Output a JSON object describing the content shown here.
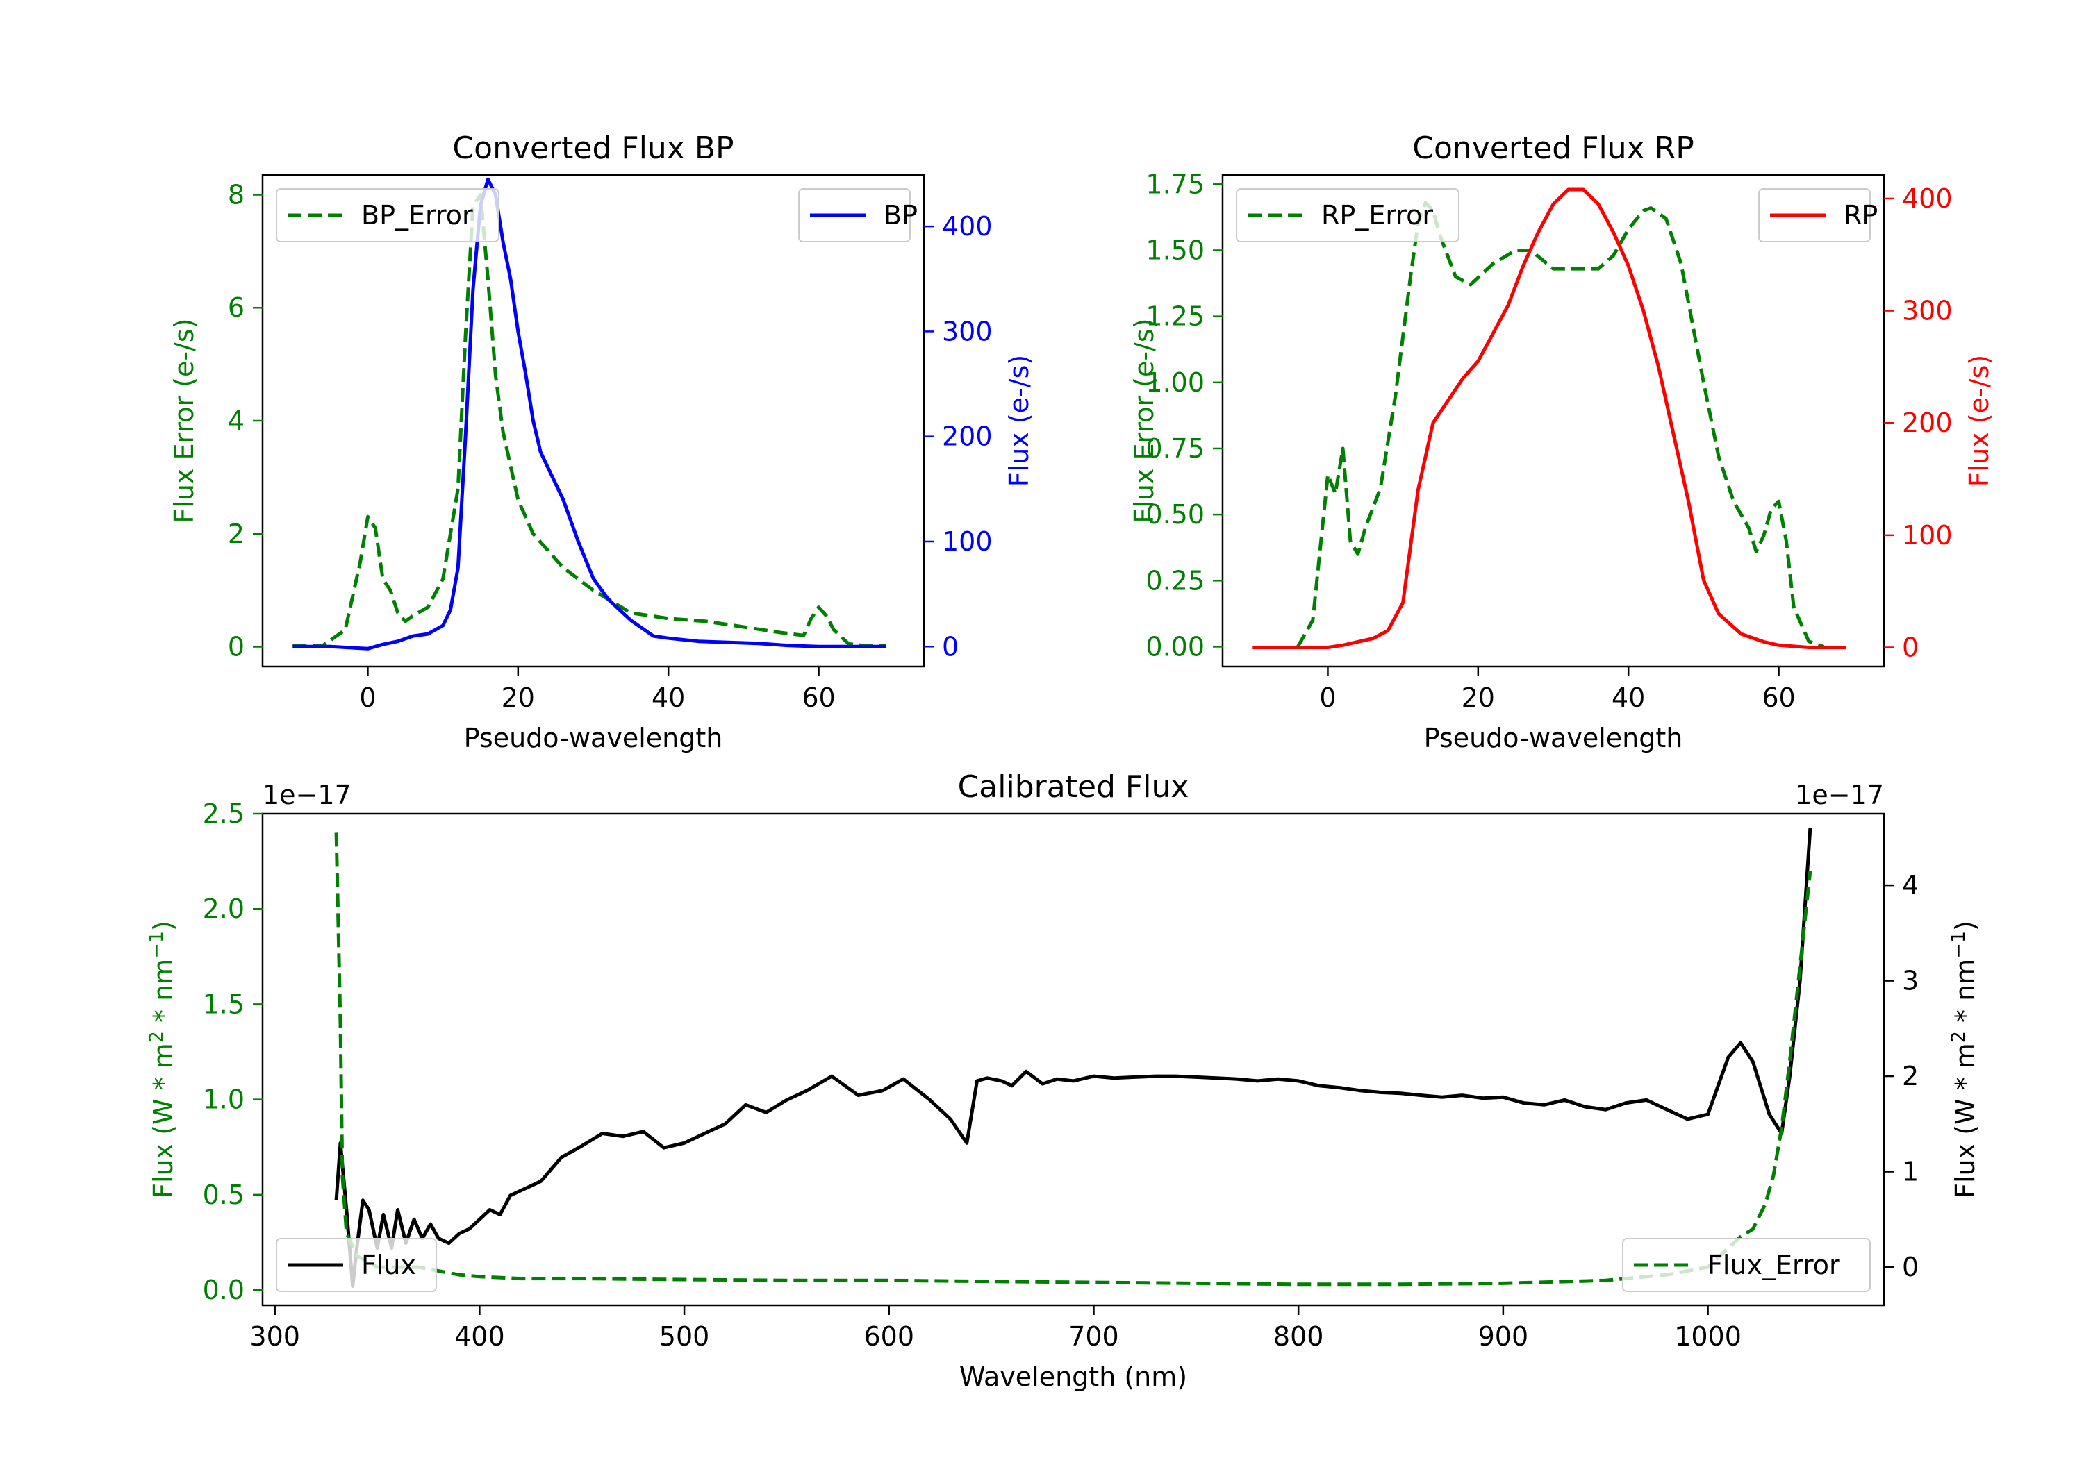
{
  "chart_data": [
    {
      "type": "line",
      "title": "Converted Flux BP",
      "xlabel": "Pseudo-wavelength",
      "ylabel_left": "Flux Error (e-/s)",
      "ylabel_right": "Flux (e-/s)",
      "xlim": [
        -14,
        74
      ],
      "ylim_left": [
        -0.35,
        8.35
      ],
      "ylim_right": [
        -19,
        449
      ],
      "x_ticks": [
        0,
        20,
        40,
        60
      ],
      "y_ticks_left": [
        0,
        2,
        4,
        6,
        8
      ],
      "y_ticks_right": [
        0,
        100,
        200,
        300,
        400
      ],
      "legend_left": {
        "label": "BP_Error",
        "position": "upper left"
      },
      "legend_right": {
        "label": "BP",
        "position": "upper right"
      },
      "colors": {
        "error": "#008000",
        "flux": "#0000ff",
        "left_axis": "#008000",
        "right_axis": "#0000ff"
      },
      "series": [
        {
          "name": "BP_Error",
          "axis": "left",
          "style": "dashed",
          "x": [
            -10,
            -6,
            -3,
            -1,
            0,
            1,
            2,
            3,
            4,
            5,
            6,
            8,
            10,
            12,
            13,
            14,
            15,
            16,
            17,
            18,
            20,
            22,
            24,
            26,
            30,
            35,
            40,
            45,
            50,
            55,
            58,
            59,
            60,
            61,
            62,
            64,
            66,
            69
          ],
          "y": [
            0.02,
            0.02,
            0.3,
            1.5,
            2.3,
            2.1,
            1.2,
            1.0,
            0.6,
            0.45,
            0.55,
            0.7,
            1.2,
            2.8,
            5.5,
            7.8,
            8.0,
            6.5,
            4.8,
            3.8,
            2.6,
            2.0,
            1.7,
            1.4,
            1.0,
            0.6,
            0.5,
            0.45,
            0.35,
            0.25,
            0.2,
            0.5,
            0.7,
            0.55,
            0.3,
            0.05,
            0.02,
            0.02
          ]
        },
        {
          "name": "BP",
          "axis": "right",
          "style": "solid",
          "x": [
            -10,
            -5,
            0,
            2,
            4,
            6,
            8,
            10,
            11,
            12,
            13,
            14,
            15,
            16,
            17,
            18,
            19,
            20,
            21,
            22,
            23,
            24,
            26,
            28,
            30,
            32,
            35,
            38,
            40,
            44,
            48,
            52,
            56,
            60,
            64,
            69
          ],
          "y": [
            0,
            0,
            -2,
            2,
            5,
            10,
            12,
            20,
            35,
            75,
            200,
            340,
            420,
            445,
            430,
            385,
            350,
            300,
            260,
            215,
            185,
            170,
            140,
            100,
            65,
            45,
            25,
            10,
            8,
            5,
            4,
            3,
            1,
            0,
            0,
            0
          ]
        }
      ]
    },
    {
      "type": "line",
      "title": "Converted Flux RP",
      "xlabel": "Pseudo-wavelength",
      "ylabel_left": "Flux Error (e-/s)",
      "ylabel_right": "Flux (e-/s)",
      "xlim": [
        -14,
        74
      ],
      "ylim_left": [
        -0.075,
        1.785
      ],
      "ylim_right": [
        -17,
        421
      ],
      "x_ticks": [
        0,
        20,
        40,
        60
      ],
      "y_ticks_left": [
        "0.00",
        "0.25",
        "0.50",
        "0.75",
        "1.00",
        "1.25",
        "1.50",
        "1.75"
      ],
      "y_ticks_right": [
        0,
        100,
        200,
        300,
        400
      ],
      "legend_left": {
        "label": "RP_Error",
        "position": "upper left"
      },
      "legend_right": {
        "label": "RP",
        "position": "upper right"
      },
      "colors": {
        "error": "#008000",
        "flux": "#ff0000",
        "left_axis": "#008000",
        "right_axis": "#ff0000"
      },
      "series": [
        {
          "name": "RP_Error",
          "axis": "left",
          "style": "dashed",
          "x": [
            -4,
            -2,
            0,
            1,
            2,
            3,
            4,
            5,
            7,
            9,
            11,
            12,
            13,
            14,
            15,
            17,
            19,
            22,
            25,
            27,
            30,
            33,
            36,
            38,
            40,
            42,
            43,
            45,
            47,
            50,
            52,
            54,
            56,
            57,
            58,
            59,
            60,
            61,
            62,
            64,
            66
          ],
          "y": [
            0.0,
            0.1,
            0.65,
            0.58,
            0.75,
            0.4,
            0.35,
            0.45,
            0.6,
            0.95,
            1.4,
            1.6,
            1.68,
            1.65,
            1.55,
            1.4,
            1.37,
            1.45,
            1.5,
            1.5,
            1.43,
            1.43,
            1.43,
            1.48,
            1.58,
            1.65,
            1.66,
            1.62,
            1.45,
            1.0,
            0.72,
            0.55,
            0.45,
            0.36,
            0.42,
            0.52,
            0.55,
            0.4,
            0.15,
            0.02,
            0.0
          ]
        },
        {
          "name": "RP",
          "axis": "right",
          "style": "solid",
          "x": [
            -10,
            0,
            2,
            4,
            6,
            8,
            10,
            12,
            14,
            16,
            18,
            20,
            22,
            24,
            26,
            28,
            30,
            32,
            34,
            36,
            38,
            40,
            42,
            44,
            46,
            48,
            50,
            52,
            55,
            58,
            60,
            64,
            69
          ],
          "y": [
            0,
            0,
            2,
            5,
            8,
            15,
            40,
            140,
            200,
            220,
            240,
            255,
            280,
            305,
            340,
            370,
            395,
            408,
            408,
            395,
            370,
            340,
            300,
            250,
            190,
            130,
            60,
            30,
            12,
            5,
            2,
            0,
            0
          ]
        }
      ]
    },
    {
      "type": "line",
      "title": "Calibrated Flux",
      "xlabel": "Wavelength (nm)",
      "ylabel_left": "Flux (W * m",
      "ylabel_right": "Flux (W * m",
      "ylabel_sup": "2",
      "ylabel_mid": " * nm",
      "ylabel_sup2": "−1",
      "ylabel_end": ")",
      "offset_left": "1e−17",
      "offset_right": "1e−17",
      "xlim": [
        294,
        1086
      ],
      "ylim_left": [
        -0.08,
        2.5
      ],
      "ylim_right": [
        -0.4,
        4.75
      ],
      "x_ticks": [
        300,
        400,
        500,
        600,
        700,
        800,
        900,
        1000
      ],
      "y_ticks_left": [
        "0.0",
        "0.5",
        "1.0",
        "1.5",
        "2.0",
        "2.5"
      ],
      "y_ticks_right": [
        0,
        1,
        2,
        3,
        4
      ],
      "legend_left": {
        "label": "Flux",
        "position": "lower left"
      },
      "legend_right": {
        "label": "Flux_Error",
        "position": "lower right"
      },
      "colors": {
        "error": "#008000",
        "flux": "#000000",
        "left_axis": "#008000",
        "right_axis": "#000000"
      },
      "series": [
        {
          "name": "Flux",
          "axis": "right",
          "style": "solid",
          "x": [
            330,
            332,
            335,
            338,
            340,
            343,
            346,
            350,
            353,
            357,
            360,
            364,
            368,
            372,
            376,
            380,
            385,
            390,
            395,
            400,
            405,
            410,
            415,
            420,
            425,
            430,
            440,
            450,
            460,
            470,
            480,
            490,
            500,
            510,
            520,
            530,
            540,
            550,
            560,
            572,
            585,
            597,
            607,
            620,
            630,
            638,
            643,
            648,
            655,
            660,
            667,
            675,
            682,
            690,
            700,
            710,
            720,
            730,
            740,
            750,
            760,
            770,
            780,
            790,
            800,
            810,
            820,
            830,
            840,
            850,
            860,
            870,
            880,
            890,
            900,
            910,
            920,
            930,
            940,
            950,
            960,
            970,
            980,
            990,
            1000,
            1010,
            1016,
            1022,
            1030,
            1036,
            1040,
            1045,
            1050
          ],
          "y": [
            0.7,
            1.3,
            0.6,
            -0.2,
            0.2,
            0.7,
            0.6,
            0.2,
            0.55,
            0.2,
            0.6,
            0.25,
            0.5,
            0.3,
            0.45,
            0.3,
            0.25,
            0.35,
            0.4,
            0.5,
            0.6,
            0.55,
            0.75,
            0.8,
            0.85,
            0.9,
            1.15,
            1.27,
            1.4,
            1.37,
            1.42,
            1.25,
            1.3,
            1.4,
            1.5,
            1.7,
            1.62,
            1.75,
            1.85,
            2.0,
            1.8,
            1.85,
            1.97,
            1.75,
            1.55,
            1.3,
            1.95,
            1.98,
            1.95,
            1.9,
            2.05,
            1.92,
            1.97,
            1.95,
            2.0,
            1.98,
            1.99,
            2.0,
            2.0,
            1.99,
            1.98,
            1.97,
            1.95,
            1.97,
            1.95,
            1.9,
            1.88,
            1.85,
            1.83,
            1.82,
            1.8,
            1.78,
            1.8,
            1.77,
            1.78,
            1.72,
            1.7,
            1.75,
            1.68,
            1.65,
            1.72,
            1.75,
            1.65,
            1.55,
            1.6,
            2.2,
            2.35,
            2.15,
            1.6,
            1.4,
            2.0,
            3.0,
            4.6
          ]
        },
        {
          "name": "Flux_Error",
          "axis": "left",
          "style": "dashed",
          "x": [
            330,
            332,
            333,
            335,
            340,
            350,
            360,
            370,
            380,
            390,
            400,
            420,
            450,
            500,
            550,
            600,
            650,
            700,
            750,
            800,
            850,
            900,
            950,
            980,
            1000,
            1010,
            1016,
            1022,
            1028,
            1032,
            1036,
            1040,
            1045,
            1050
          ],
          "y": [
            2.4,
            1.4,
            0.6,
            0.3,
            0.18,
            0.12,
            0.12,
            0.12,
            0.1,
            0.08,
            0.07,
            0.06,
            0.06,
            0.055,
            0.05,
            0.05,
            0.045,
            0.04,
            0.035,
            0.03,
            0.03,
            0.035,
            0.05,
            0.08,
            0.12,
            0.22,
            0.28,
            0.32,
            0.45,
            0.6,
            0.85,
            1.2,
            1.7,
            2.2
          ]
        }
      ]
    }
  ]
}
